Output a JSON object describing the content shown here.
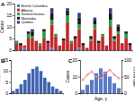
{
  "chart_data": [
    {
      "type": "bar",
      "title": "A",
      "ylabel": "Cases",
      "stacked": true,
      "legend": "top-left",
      "tick_labels": "y",
      "categories": [
        null,
        null,
        null,
        null,
        null,
        null,
        null,
        null,
        null,
        null,
        null,
        null,
        null,
        null,
        null,
        null,
        null,
        null,
        null,
        null,
        null,
        null,
        null,
        null,
        null,
        null,
        null,
        null,
        null,
        null
      ],
      "series": [
        {
          "name": "British Columbia",
          "color": "#4a7ebb",
          "values": [
            0,
            0,
            1,
            0,
            0,
            0,
            0,
            0,
            0,
            1,
            0,
            0,
            0,
            0,
            0,
            0,
            1,
            0,
            0,
            0,
            0,
            0,
            0,
            0,
            0,
            0,
            0,
            0,
            0,
            0
          ]
        },
        {
          "name": "Alberta",
          "color": "#c0282d",
          "values": [
            3,
            2,
            1,
            5,
            5,
            4,
            2,
            5,
            3,
            10,
            6,
            2,
            4,
            12,
            3,
            5,
            8,
            2,
            1,
            4,
            9,
            3,
            6,
            2,
            10,
            4,
            7,
            3,
            5,
            2
          ]
        },
        {
          "name": "Saskatchewan",
          "color": "#2e9b3e",
          "values": [
            1,
            0,
            0,
            2,
            1,
            0,
            1,
            3,
            0,
            2,
            1,
            0,
            0,
            3,
            1,
            0,
            2,
            0,
            0,
            1,
            2,
            0,
            1,
            0,
            3,
            1,
            1,
            0,
            2,
            0
          ]
        },
        {
          "name": "Manitoba",
          "color": "#1a1a1a",
          "values": [
            0,
            1,
            0,
            1,
            2,
            0,
            0,
            1,
            1,
            3,
            0,
            0,
            1,
            2,
            0,
            1,
            3,
            1,
            0,
            1,
            2,
            1,
            0,
            0,
            3,
            1,
            2,
            0,
            1,
            1
          ]
        },
        {
          "name": "Québec",
          "color": "#2b3f8f",
          "values": [
            0,
            0,
            0,
            0,
            1,
            0,
            0,
            0,
            0,
            2,
            0,
            0,
            0,
            1,
            0,
            0,
            2,
            0,
            0,
            0,
            1,
            0,
            0,
            0,
            2,
            0,
            1,
            0,
            0,
            0
          ]
        }
      ],
      "ylim": [
        0,
        20
      ],
      "yticks": [
        0,
        5,
        10,
        15,
        20
      ]
    },
    {
      "type": "bar",
      "title": "B",
      "ylabel": "Cases",
      "tick_labels": "y",
      "color": "#3f63b0",
      "categories": [
        null,
        null,
        null,
        null,
        null,
        null,
        null,
        null,
        null,
        null,
        null,
        null,
        null
      ],
      "values": [
        1,
        2,
        4,
        6,
        9,
        11,
        12,
        10,
        7,
        5,
        3,
        2,
        1
      ],
      "ylim": [
        0,
        15
      ],
      "yticks": [
        0,
        5,
        10,
        15
      ]
    },
    {
      "type": "bar",
      "title": "C",
      "ylabel": "Cases",
      "y2label": "% Female",
      "xlabel": "Age, y",
      "tick_labels": "y",
      "categories": [
        null,
        null,
        null,
        null,
        null,
        null,
        null,
        null,
        null
      ],
      "series": [
        {
          "type": "bar",
          "color": "#5a7cc4",
          "values": [
            2,
            5,
            8,
            12,
            15,
            13,
            10,
            6,
            3
          ]
        },
        {
          "type": "line",
          "axis": "y2",
          "color": "#d9534f",
          "marker": "circle",
          "values": [
            40,
            55,
            65,
            50,
            45,
            60,
            70,
            55,
            45
          ]
        }
      ],
      "ylim": [
        0,
        20
      ],
      "yticks": [
        0,
        10,
        20
      ],
      "y2lim": [
        0,
        100
      ],
      "y2ticks": [
        0,
        50,
        100
      ]
    }
  ]
}
